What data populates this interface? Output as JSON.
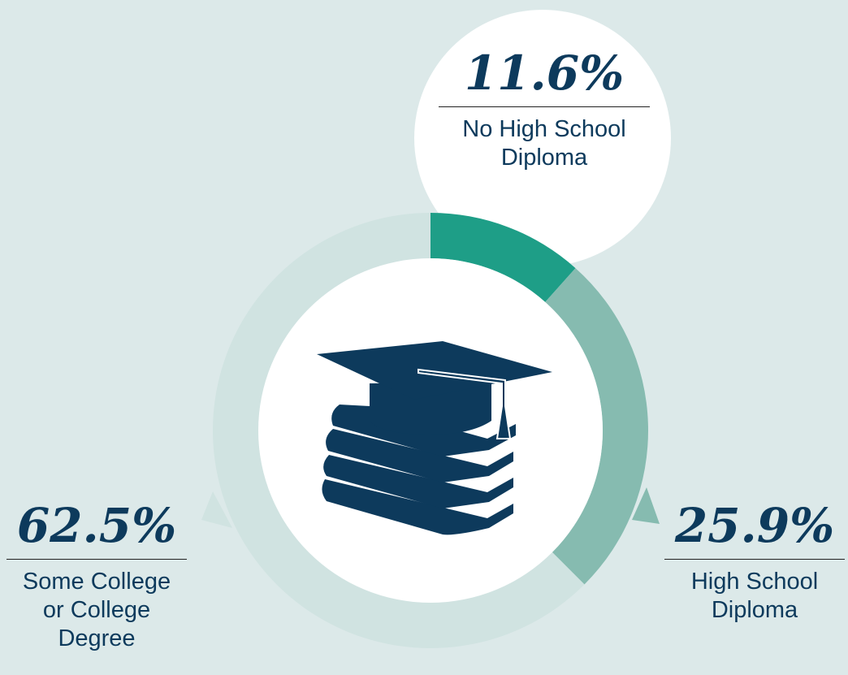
{
  "chart_data": {
    "type": "donut",
    "categories": [
      "No High School Diploma",
      "High School Diploma",
      "Some College or College Degree"
    ],
    "values": [
      11.6,
      25.9,
      62.5
    ],
    "value_labels": [
      "11.6%",
      "25.9%",
      "62.5%"
    ],
    "colors": [
      "#1e9e87",
      "#86bbb0",
      "#d0e3e1"
    ]
  }
}
